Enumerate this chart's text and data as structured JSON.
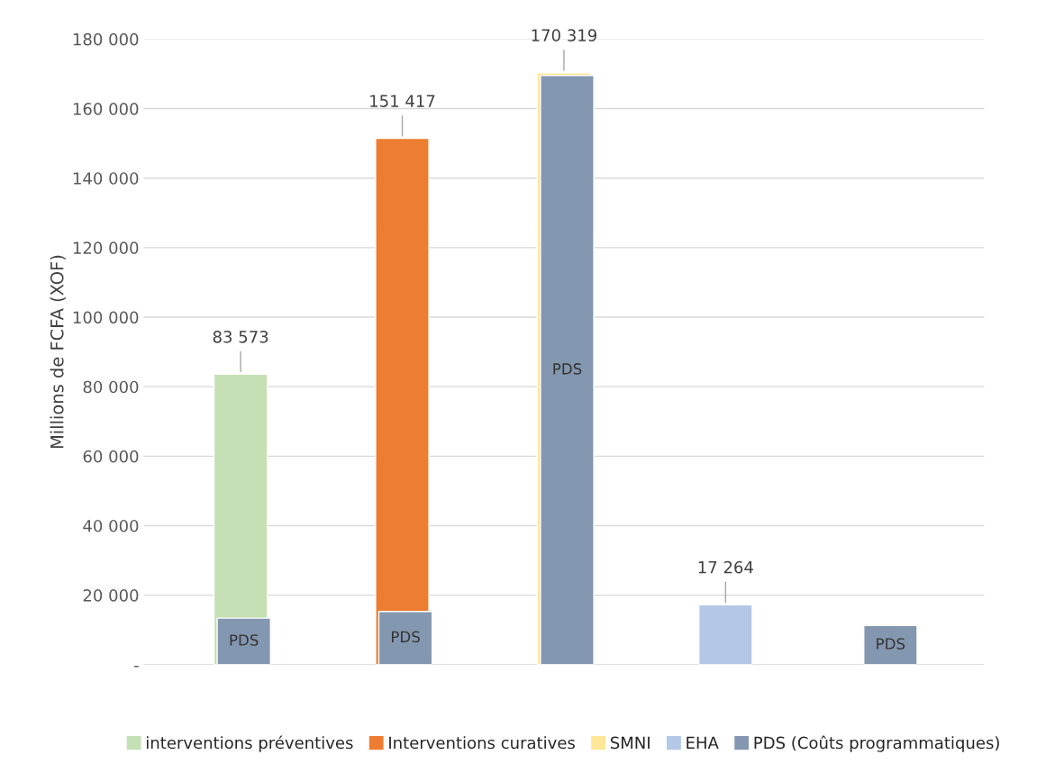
{
  "chart_data": {
    "type": "bar",
    "ylabel": "Millions de FCFA (XOF)",
    "categories": [
      null,
      null,
      null,
      null,
      null
    ],
    "series": [
      {
        "name": "interventions préventives",
        "color": "#c5e0b4",
        "values": [
          83573,
          null,
          null,
          null,
          null
        ],
        "value_labels": [
          "83 573",
          null,
          null,
          null,
          null
        ]
      },
      {
        "name": "Interventions curatives",
        "color": "#ed7d31",
        "values": [
          null,
          151417,
          null,
          null,
          null
        ],
        "value_labels": [
          null,
          "151 417",
          null,
          null,
          null
        ]
      },
      {
        "name": "SMNI",
        "color": "#ffe699",
        "values": [
          null,
          null,
          170319,
          null,
          null
        ],
        "value_labels": [
          null,
          null,
          "170 319",
          null,
          null
        ]
      },
      {
        "name": "EHA",
        "color": "#b4c7e7",
        "values": [
          null,
          null,
          null,
          17264,
          null
        ],
        "value_labels": [
          null,
          null,
          null,
          "17 264",
          null
        ]
      },
      {
        "name": "PDS (Coûts programmatiques)",
        "color": "#8497b0",
        "values": [
          13400,
          15300,
          169500,
          null,
          11300
        ],
        "value_labels": [
          "PDS",
          "PDS",
          "PDS",
          null,
          "PDS"
        ]
      }
    ],
    "ylim": [
      0,
      180000
    ],
    "yticks": [
      {
        "value": 0,
        "label": "-"
      },
      {
        "value": 20000,
        "label": "20 000"
      },
      {
        "value": 40000,
        "label": "40 000"
      },
      {
        "value": 60000,
        "label": "60 000"
      },
      {
        "value": 80000,
        "label": "80 000"
      },
      {
        "value": 100000,
        "label": "100 000"
      },
      {
        "value": 120000,
        "label": "120 000"
      },
      {
        "value": 140000,
        "label": "140 000"
      },
      {
        "value": 160000,
        "label": "160 000"
      },
      {
        "value": 180000,
        "label": "180 000"
      }
    ],
    "grid": "y",
    "legend": "bottom"
  }
}
